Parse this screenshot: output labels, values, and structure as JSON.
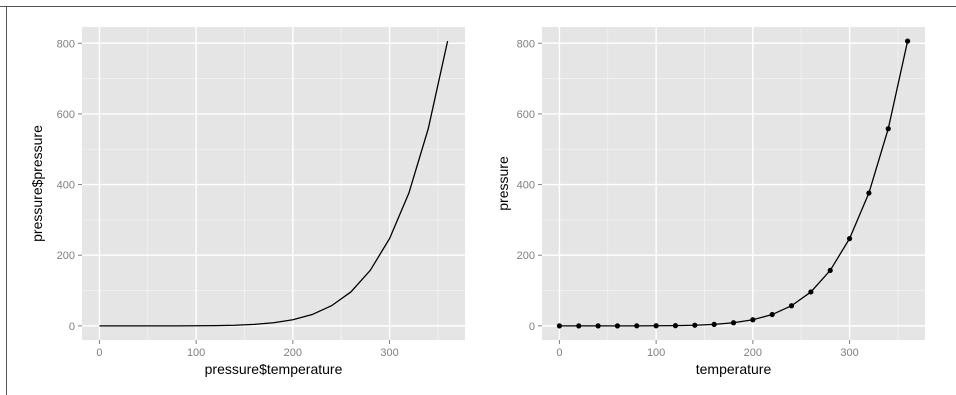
{
  "chart_data": [
    {
      "type": "line",
      "title": "",
      "xlabel": "pressure$temperature",
      "ylabel": "pressure$pressure",
      "xlim": [
        -18,
        378
      ],
      "ylim": [
        -40,
        846
      ],
      "xticks": [
        0,
        100,
        200,
        300
      ],
      "xtick_labels": [
        "0",
        "100",
        "200",
        "300"
      ],
      "yticks": [
        0,
        200,
        400,
        600,
        800
      ],
      "ytick_labels": [
        "0",
        "200",
        "400",
        "600",
        "800"
      ],
      "grid": true,
      "points": false,
      "series": [
        {
          "x": [
            0,
            20,
            40,
            60,
            80,
            100,
            120,
            140,
            160,
            180,
            200,
            220,
            240,
            260,
            280,
            300,
            320,
            340,
            360
          ],
          "y": [
            0.0002,
            0.0012,
            0.006,
            0.03,
            0.09,
            0.27,
            0.75,
            1.85,
            4.2,
            8.8,
            17.3,
            32.1,
            57,
            96,
            157,
            247,
            376,
            558,
            806
          ]
        }
      ]
    },
    {
      "type": "line",
      "title": "",
      "xlabel": "temperature",
      "ylabel": "pressure",
      "xlim": [
        -18,
        378
      ],
      "ylim": [
        -40,
        846
      ],
      "xticks": [
        0,
        100,
        200,
        300
      ],
      "xtick_labels": [
        "0",
        "100",
        "200",
        "300"
      ],
      "yticks": [
        0,
        200,
        400,
        600,
        800
      ],
      "ytick_labels": [
        "0",
        "200",
        "400",
        "600",
        "800"
      ],
      "grid": true,
      "points": true,
      "series": [
        {
          "x": [
            0,
            20,
            40,
            60,
            80,
            100,
            120,
            140,
            160,
            180,
            200,
            220,
            240,
            260,
            280,
            300,
            320,
            340,
            360
          ],
          "y": [
            0.0002,
            0.0012,
            0.006,
            0.03,
            0.09,
            0.27,
            0.75,
            1.85,
            4.2,
            8.8,
            17.3,
            32.1,
            57,
            96,
            157,
            247,
            376,
            558,
            806
          ]
        }
      ]
    }
  ]
}
